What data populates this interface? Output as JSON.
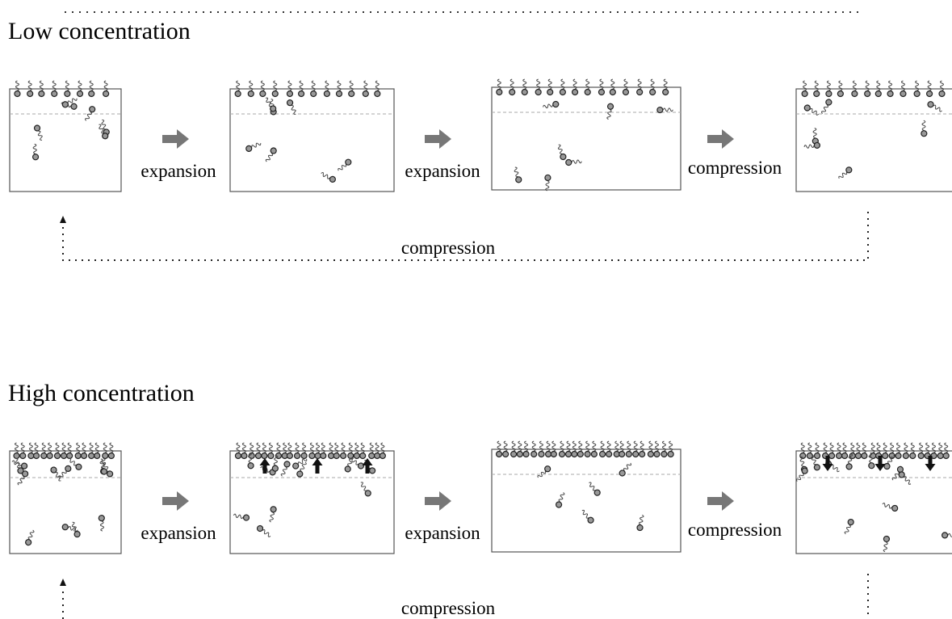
{
  "sections": [
    {
      "title": "Low concentration",
      "steps": [
        "expansion",
        "expansion",
        "compression"
      ],
      "return_label": "compression"
    },
    {
      "title": "High concentration",
      "steps": [
        "expansion",
        "expansion",
        "compression"
      ],
      "return_label": "compression"
    }
  ]
}
